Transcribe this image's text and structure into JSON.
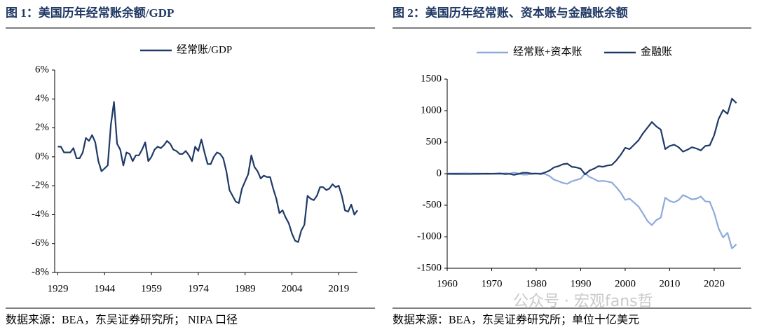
{
  "chart_data": [
    {
      "type": "line",
      "title": "图 1：美国历年经常账余额/GDP",
      "source": "数据来源：BEA，东吴证券研究所；  NIPA 口径",
      "x": [
        1929,
        1930,
        1931,
        1932,
        1933,
        1934,
        1935,
        1936,
        1937,
        1938,
        1939,
        1940,
        1941,
        1942,
        1943,
        1944,
        1945,
        1946,
        1947,
        1948,
        1949,
        1950,
        1951,
        1952,
        1953,
        1954,
        1955,
        1956,
        1957,
        1958,
        1959,
        1960,
        1961,
        1962,
        1963,
        1964,
        1965,
        1966,
        1967,
        1968,
        1969,
        1970,
        1971,
        1972,
        1973,
        1974,
        1975,
        1976,
        1977,
        1978,
        1979,
        1980,
        1981,
        1982,
        1983,
        1984,
        1985,
        1986,
        1987,
        1988,
        1989,
        1990,
        1991,
        1992,
        1993,
        1994,
        1995,
        1996,
        1997,
        1998,
        1999,
        2000,
        2001,
        2002,
        2003,
        2004,
        2005,
        2006,
        2007,
        2008,
        2009,
        2010,
        2011,
        2012,
        2013,
        2014,
        2015,
        2016,
        2017,
        2018,
        2019,
        2020,
        2021,
        2022,
        2023,
        2024,
        2025
      ],
      "series": [
        {
          "name": "经常账/GDP",
          "color": "#1f3a68",
          "values": [
            0.7,
            0.7,
            0.3,
            0.3,
            0.3,
            0.6,
            -0.1,
            -0.1,
            0.3,
            1.3,
            1.1,
            1.5,
            1.0,
            -0.3,
            -1.0,
            -0.8,
            -0.6,
            2.2,
            3.8,
            0.9,
            0.5,
            -0.6,
            0.3,
            0.2,
            -0.3,
            0.1,
            0.1,
            0.5,
            1.0,
            -0.3,
            0.0,
            0.5,
            0.7,
            0.6,
            0.8,
            1.1,
            0.9,
            0.5,
            0.4,
            0.2,
            0.2,
            0.4,
            0.1,
            -0.3,
            0.7,
            0.4,
            1.2,
            0.3,
            -0.5,
            -0.5,
            0.0,
            0.3,
            0.2,
            -0.1,
            -1.0,
            -2.3,
            -2.7,
            -3.1,
            -3.2,
            -2.2,
            -1.7,
            -1.2,
            0.1,
            -0.7,
            -1.0,
            -1.5,
            -1.3,
            -1.4,
            -1.4,
            -2.2,
            -2.9,
            -3.9,
            -3.7,
            -4.2,
            -4.6,
            -5.3,
            -5.8,
            -5.9,
            -5.1,
            -4.7,
            -2.7,
            -2.9,
            -3.0,
            -2.7,
            -2.1,
            -2.1,
            -2.3,
            -2.2,
            -1.9,
            -2.1,
            -2.0,
            -2.7,
            -3.7,
            -3.8,
            -3.3,
            -4.0,
            -3.7
          ]
        }
      ],
      "xlim": [
        1928,
        2025
      ],
      "xticks": [
        1929,
        1944,
        1959,
        1974,
        1989,
        2004,
        2019
      ],
      "ylim": [
        -8,
        6
      ],
      "yticks": [
        {
          "value": -8,
          "label": "-8%"
        },
        {
          "value": -6,
          "label": "-6%"
        },
        {
          "value": -4,
          "label": "-4%"
        },
        {
          "value": -2,
          "label": "-2%"
        },
        {
          "value": 0,
          "label": "0%"
        },
        {
          "value": 2,
          "label": "2%"
        },
        {
          "value": 4,
          "label": "4%"
        },
        {
          "value": 6,
          "label": "6%"
        }
      ],
      "grid": false,
      "legend": "top"
    },
    {
      "type": "line",
      "title": "图 2：美国历年经常账、资本账与金融账余额",
      "source": "数据来源：BEA，东吴证券研究所；单位十亿美元",
      "x": [
        1960,
        1961,
        1962,
        1963,
        1964,
        1965,
        1966,
        1967,
        1968,
        1969,
        1970,
        1971,
        1972,
        1973,
        1974,
        1975,
        1976,
        1977,
        1978,
        1979,
        1980,
        1981,
        1982,
        1983,
        1984,
        1985,
        1986,
        1987,
        1988,
        1989,
        1990,
        1991,
        1992,
        1993,
        1994,
        1995,
        1996,
        1997,
        1998,
        1999,
        2000,
        2001,
        2002,
        2003,
        2004,
        2005,
        2006,
        2007,
        2008,
        2009,
        2010,
        2011,
        2012,
        2013,
        2014,
        2015,
        2016,
        2017,
        2018,
        2019,
        2020,
        2021,
        2022,
        2023,
        2024,
        2025
      ],
      "series": [
        {
          "name": "经常账+资本账",
          "color": "#8eaadb",
          "values": [
            3,
            4,
            3,
            4,
            6,
            5,
            3,
            3,
            1,
            0,
            2,
            -1,
            -5,
            7,
            2,
            18,
            4,
            -14,
            -15,
            0,
            2,
            5,
            -5,
            -38,
            -94,
            -118,
            -147,
            -160,
            -121,
            -99,
            -79,
            3,
            -51,
            -84,
            -121,
            -113,
            -124,
            -140,
            -214,
            -300,
            -416,
            -397,
            -458,
            -521,
            -631,
            -749,
            -816,
            -736,
            -696,
            -381,
            -432,
            -455,
            -418,
            -339,
            -370,
            -408,
            -397,
            -361,
            -439,
            -446,
            -620,
            -868,
            -1012,
            -938,
            -1185,
            -1120
          ]
        },
        {
          "name": "金融账",
          "color": "#1f3a68",
          "values": [
            -3,
            -4,
            -3,
            -4,
            -5,
            -5,
            -3,
            -3,
            -1,
            0,
            -2,
            1,
            5,
            -7,
            -2,
            -18,
            -4,
            14,
            15,
            0,
            2,
            -5,
            20,
            50,
            100,
            120,
            150,
            160,
            110,
            100,
            80,
            -10,
            50,
            80,
            120,
            110,
            130,
            140,
            210,
            300,
            410,
            390,
            460,
            530,
            640,
            730,
            820,
            750,
            700,
            390,
            440,
            460,
            420,
            350,
            380,
            420,
            400,
            370,
            440,
            450,
            610,
            870,
            1010,
            950,
            1190,
            1120
          ]
        }
      ],
      "xlim": [
        1960,
        2026
      ],
      "xticks": [
        1960,
        1970,
        1980,
        1990,
        2000,
        2010,
        2020
      ],
      "ylim": [
        -1500,
        1500
      ],
      "yticks": [
        -1500,
        -1000,
        -500,
        0,
        500,
        1000,
        1500
      ],
      "grid": false,
      "legend": "top"
    }
  ],
  "watermark": "公众号 · 宏观fans哲"
}
